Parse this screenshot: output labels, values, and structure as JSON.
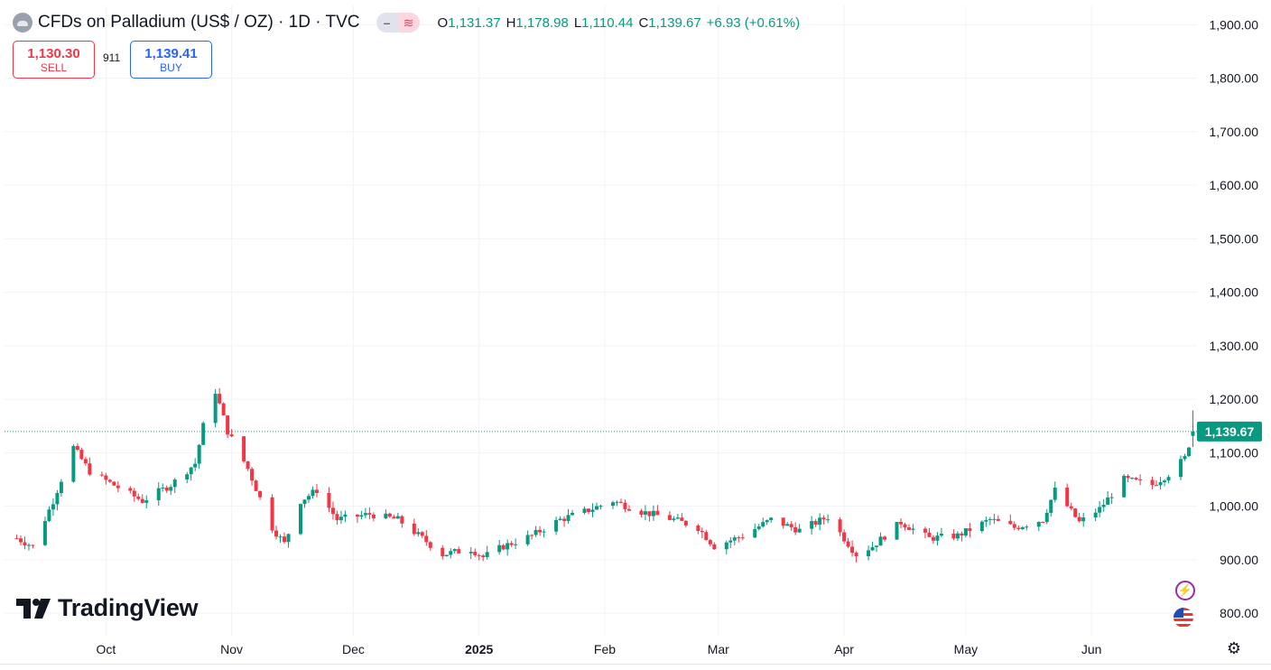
{
  "header": {
    "title": "CFDs on Palladium (US$ / OZ) · 1D · TVC",
    "pill_left_icon": "minus-icon",
    "pill_right_icon": "wave-icon",
    "ohlc": {
      "o_label": "O",
      "o_value": "1,131.37",
      "h_label": "H",
      "h_value": "1,178.98",
      "l_label": "L",
      "l_value": "1,110.44",
      "c_label": "C",
      "c_value": "1,139.67",
      "change": "+6.93 (+0.61%)"
    }
  },
  "trade": {
    "sell_price": "1,130.30",
    "sell_label": "SELL",
    "spread": "911",
    "buy_price": "1,139.41",
    "buy_label": "BUY"
  },
  "logo": {
    "text": "TradingView"
  },
  "colors": {
    "up": "#089981",
    "down": "#f23645",
    "grid": "#f0f3fa",
    "text": "#131722"
  },
  "chart_data": {
    "type": "candlestick",
    "title": "CFDs on Palladium (US$ / OZ) · 1D · TVC",
    "y_ticks": [
      "1,900.00",
      "1,800.00",
      "1,700.00",
      "1,600.00",
      "1,500.00",
      "1,400.00",
      "1,300.00",
      "1,200.00",
      "1,100.00",
      "1,000.00",
      "900.00",
      "800.00"
    ],
    "y_tick_values": [
      1900,
      1800,
      1700,
      1600,
      1500,
      1400,
      1300,
      1200,
      1100,
      1000,
      900,
      800
    ],
    "ylim": [
      758,
      1936
    ],
    "x_ticks": [
      {
        "label": "Oct",
        "date": "2024-10-01",
        "bold": false
      },
      {
        "label": "Nov",
        "date": "2024-11-01",
        "bold": false
      },
      {
        "label": "Dec",
        "date": "2024-12-01",
        "bold": false
      },
      {
        "label": "2025",
        "date": "2025-01-01",
        "bold": true
      },
      {
        "label": "Feb",
        "date": "2025-02-01",
        "bold": false
      },
      {
        "label": "Mar",
        "date": "2025-03-01",
        "bold": false
      },
      {
        "label": "Apr",
        "date": "2025-04-01",
        "bold": false
      },
      {
        "label": "May",
        "date": "2025-05-01",
        "bold": false
      },
      {
        "label": "Jun",
        "date": "2025-06-01",
        "bold": false
      }
    ],
    "last_price": 1139.67,
    "last_price_label": "1,139.67",
    "monthly_path": [
      [
        "2024-09-09",
        940
      ],
      [
        "2024-09-13",
        925
      ],
      [
        "2024-09-18",
        1010
      ],
      [
        "2024-09-23",
        1110
      ],
      [
        "2024-09-27",
        1065
      ],
      [
        "2024-10-04",
        1035
      ],
      [
        "2024-10-10",
        1010
      ],
      [
        "2024-10-17",
        1040
      ],
      [
        "2024-10-23",
        1080
      ],
      [
        "2024-10-25",
        1150
      ],
      [
        "2024-10-28",
        1215
      ],
      [
        "2024-10-31",
        1140
      ],
      [
        "2024-11-05",
        1070
      ],
      [
        "2024-11-11",
        960
      ],
      [
        "2024-11-14",
        930
      ],
      [
        "2024-11-18",
        1010
      ],
      [
        "2024-11-22",
        1030
      ],
      [
        "2024-11-27",
        975
      ],
      [
        "2024-12-05",
        985
      ],
      [
        "2024-12-12",
        975
      ],
      [
        "2024-12-18",
        940
      ],
      [
        "2024-12-23",
        910
      ],
      [
        "2024-12-30",
        920
      ],
      [
        "2025-01-02",
        905
      ],
      [
        "2025-01-07",
        925
      ],
      [
        "2025-01-14",
        945
      ],
      [
        "2025-01-21",
        975
      ],
      [
        "2025-01-27",
        990
      ],
      [
        "2025-02-03",
        1010
      ],
      [
        "2025-02-10",
        990
      ],
      [
        "2025-02-18",
        975
      ],
      [
        "2025-02-24",
        960
      ],
      [
        "2025-02-28",
        925
      ],
      [
        "2025-03-07",
        945
      ],
      [
        "2025-03-14",
        975
      ],
      [
        "2025-03-21",
        955
      ],
      [
        "2025-03-28",
        980
      ],
      [
        "2025-04-04",
        910
      ],
      [
        "2025-04-08",
        925
      ],
      [
        "2025-04-15",
        970
      ],
      [
        "2025-04-22",
        940
      ],
      [
        "2025-04-29",
        945
      ],
      [
        "2025-05-07",
        975
      ],
      [
        "2025-05-13",
        960
      ],
      [
        "2025-05-20",
        975
      ],
      [
        "2025-05-23",
        1030
      ],
      [
        "2025-05-29",
        970
      ],
      [
        "2025-06-03",
        995
      ],
      [
        "2025-06-09",
        1050
      ],
      [
        "2025-06-16",
        1040
      ],
      [
        "2025-06-20",
        1060
      ],
      [
        "2025-06-24",
        1090
      ],
      [
        "2025-06-26",
        1139.67
      ]
    ]
  }
}
